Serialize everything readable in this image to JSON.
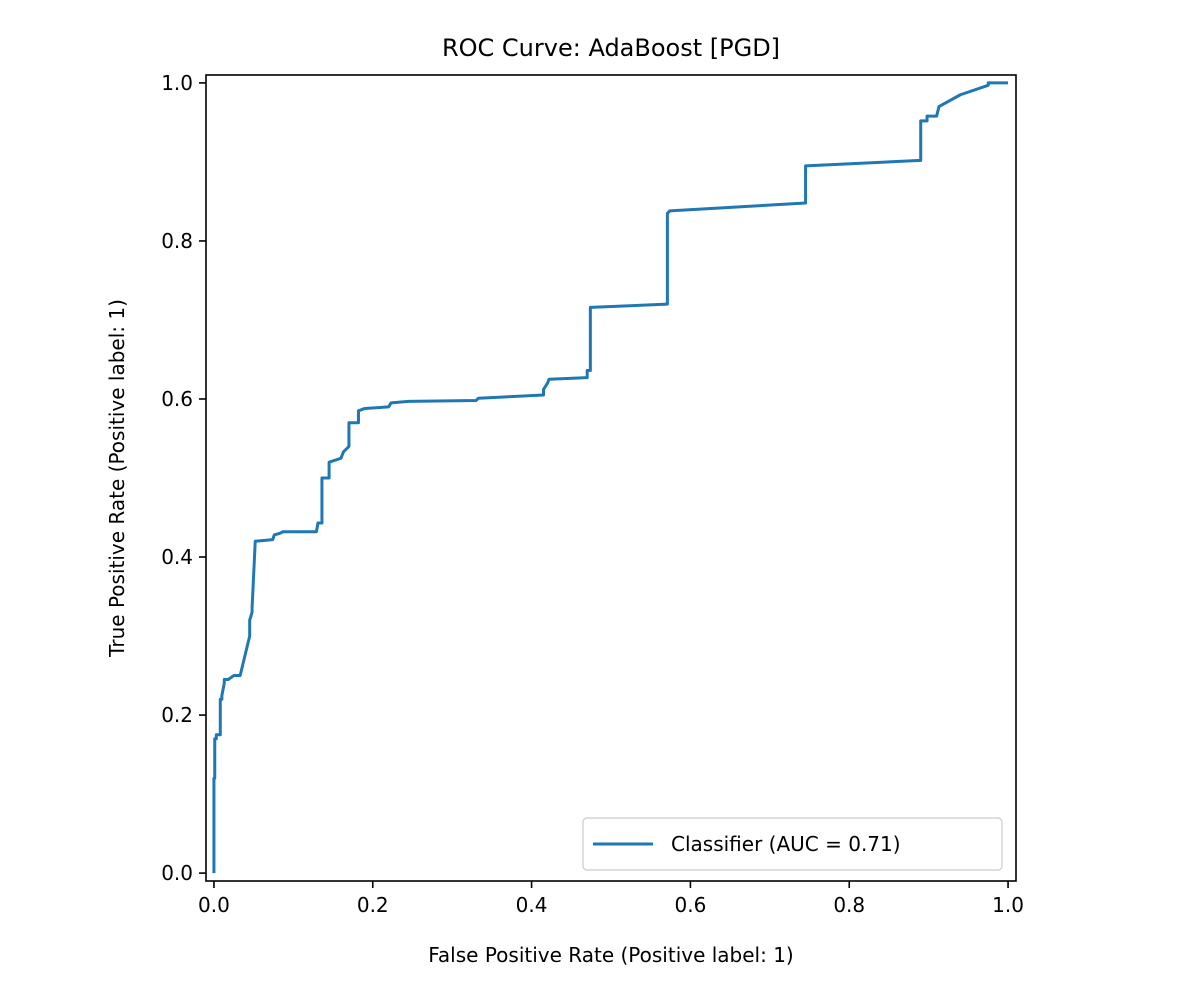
{
  "chart_data": {
    "type": "line",
    "title": "ROC Curve: AdaBoost [PGD]",
    "xlabel": "False Positive Rate (Positive label: 1)",
    "ylabel": "True Positive Rate (Positive label: 1)",
    "xlim": [
      -0.01,
      1.01
    ],
    "ylim": [
      -0.01,
      1.01
    ],
    "xticks": [
      "0.0",
      "0.2",
      "0.4",
      "0.6",
      "0.8",
      "1.0"
    ],
    "yticks": [
      "0.0",
      "0.2",
      "0.4",
      "0.6",
      "0.8",
      "1.0"
    ],
    "grid": false,
    "legend_position": "lower right",
    "series": [
      {
        "name": "Classifier (AUC = 0.71)",
        "color": "#1f77b4",
        "x": [
          0.0,
          0.0,
          0.001,
          0.001,
          0.003,
          0.003,
          0.008,
          0.008,
          0.01,
          0.01,
          0.013,
          0.013,
          0.018,
          0.025,
          0.025,
          0.033,
          0.045,
          0.045,
          0.048,
          0.048,
          0.052,
          0.074,
          0.076,
          0.083,
          0.087,
          0.129,
          0.131,
          0.136,
          0.136,
          0.145,
          0.145,
          0.16,
          0.163,
          0.17,
          0.17,
          0.182,
          0.182,
          0.19,
          0.22,
          0.223,
          0.245,
          0.33,
          0.333,
          0.415,
          0.415,
          0.42,
          0.422,
          0.47,
          0.47,
          0.474,
          0.474,
          0.571,
          0.571,
          0.574,
          0.745,
          0.745,
          0.89,
          0.89,
          0.898,
          0.898,
          0.91,
          0.913,
          0.94,
          0.975,
          0.975,
          1.0
        ],
        "y": [
          0.0,
          0.12,
          0.12,
          0.17,
          0.17,
          0.175,
          0.175,
          0.22,
          0.22,
          0.225,
          0.24,
          0.245,
          0.245,
          0.25,
          0.25,
          0.25,
          0.3,
          0.32,
          0.33,
          0.335,
          0.42,
          0.422,
          0.428,
          0.43,
          0.432,
          0.432,
          0.443,
          0.443,
          0.5,
          0.5,
          0.52,
          0.525,
          0.533,
          0.54,
          0.57,
          0.57,
          0.585,
          0.588,
          0.59,
          0.595,
          0.597,
          0.598,
          0.601,
          0.605,
          0.612,
          0.62,
          0.625,
          0.627,
          0.636,
          0.636,
          0.716,
          0.72,
          0.835,
          0.838,
          0.848,
          0.895,
          0.902,
          0.952,
          0.952,
          0.958,
          0.958,
          0.97,
          0.985,
          0.997,
          1.0,
          1.0
        ]
      }
    ]
  }
}
